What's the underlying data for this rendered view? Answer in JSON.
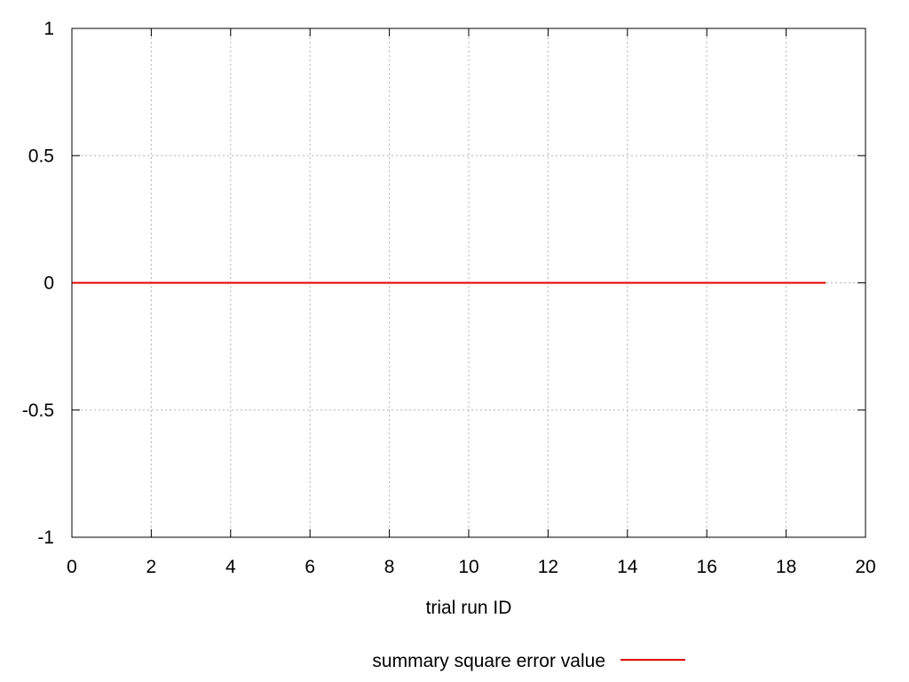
{
  "chart_data": {
    "type": "line",
    "title": "",
    "xlabel": "trial run ID",
    "ylabel": "",
    "xlim": [
      0,
      20
    ],
    "ylim": [
      -1,
      1
    ],
    "x_ticks": [
      0,
      2,
      4,
      6,
      8,
      10,
      12,
      14,
      16,
      18,
      20
    ],
    "x_tick_labels": [
      "0",
      "2",
      "4",
      "6",
      "8",
      "10",
      "12",
      "14",
      "16",
      "18",
      "20"
    ],
    "y_ticks": [
      1,
      0.5,
      0,
      -0.5,
      -1
    ],
    "y_tick_labels": [
      "1",
      "0.5",
      "0",
      "-0.5",
      "-1"
    ],
    "grid": true,
    "legend_position": "bottom-center",
    "series": [
      {
        "name": "summary square error value",
        "color": "#e00000",
        "x": [
          0,
          1,
          2,
          3,
          4,
          5,
          6,
          7,
          8,
          9,
          10,
          11,
          12,
          13,
          14,
          15,
          16,
          17,
          18,
          19
        ],
        "y": [
          0,
          0,
          0,
          0,
          0,
          0,
          0,
          0,
          0,
          0,
          0,
          0,
          0,
          0,
          0,
          0,
          0,
          0,
          0,
          0
        ]
      }
    ]
  }
}
